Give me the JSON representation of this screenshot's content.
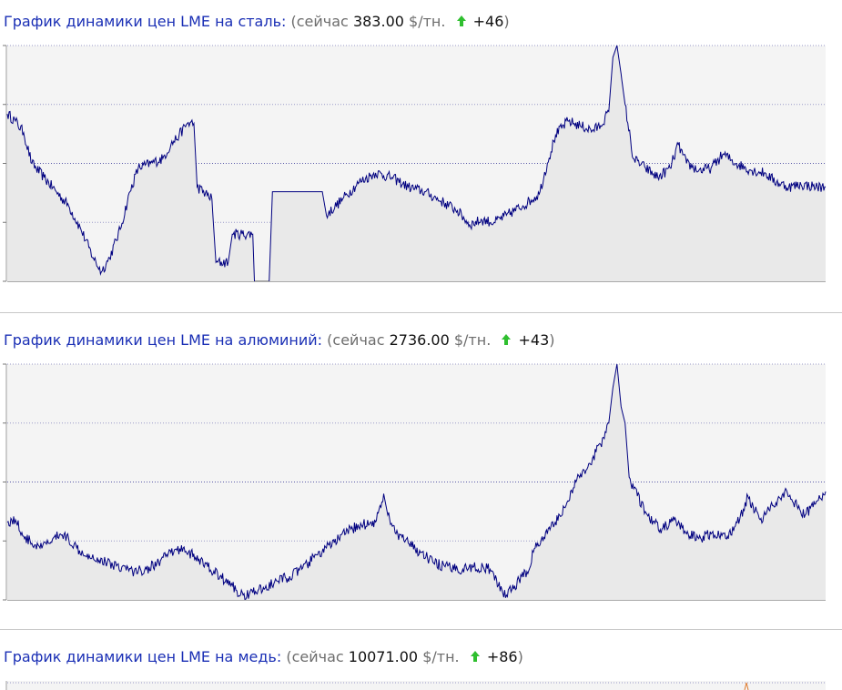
{
  "sections": [
    {
      "id": "steel",
      "title": "График динамики цен LME на сталь:",
      "now_label": "(сейчас",
      "price": "383.00",
      "unit": "$/тн.",
      "delta": "+46",
      "close_paren": ")",
      "arrow_icon": "arrow-up-icon"
    },
    {
      "id": "aluminum",
      "title": "График динамики цен LME на алюминий:",
      "now_label": "(сейчас",
      "price": "2736.00",
      "unit": "$/тн.",
      "delta": "+43",
      "close_paren": ")",
      "arrow_icon": "arrow-up-icon"
    },
    {
      "id": "copper",
      "title": "График динамики цен LME на медь:",
      "now_label": "(сейчас",
      "price": "10071.00",
      "unit": "$/тн.",
      "delta": "+86",
      "close_paren": ")",
      "arrow_icon": "arrow-up-icon"
    }
  ],
  "colors": {
    "title_link": "#1a2fb5",
    "muted": "#6d6d6d",
    "arrow": "#2fbf2f",
    "line": "#000080",
    "area": "#e9e9e9",
    "plot_bg": "#f4f4f4",
    "grid": "#9a9ac8",
    "grid_mid": "#5a5aa8"
  },
  "chart_data": [
    {
      "type": "line",
      "name": "steel",
      "title": "",
      "xlabel": "",
      "ylabel": "",
      "grid": true,
      "ylim": [
        0,
        100
      ],
      "y_note": "relative level 0-100 (axis tick labels are clipped in the image)",
      "x": [
        0,
        2,
        4,
        6,
        8,
        10,
        12,
        14,
        16,
        18,
        20,
        22,
        24,
        26,
        28,
        30,
        32,
        34,
        36,
        38,
        40,
        42,
        44,
        46,
        48,
        50,
        52,
        54,
        56,
        58,
        60,
        62,
        64,
        66,
        68,
        70,
        72,
        74,
        76,
        78,
        80,
        82,
        84,
        86,
        88,
        90,
        92,
        94,
        96,
        98,
        100
      ],
      "segments": [
        [
          [
            0.0,
            71
          ],
          [
            1.0,
            68
          ],
          [
            2.0,
            63
          ],
          [
            3.0,
            50
          ],
          [
            4.5,
            44
          ],
          [
            6.0,
            38
          ],
          [
            7.5,
            32
          ],
          [
            9.0,
            22
          ],
          [
            10.5,
            10
          ],
          [
            11.5,
            4
          ],
          [
            12.5,
            10
          ],
          [
            13.8,
            22
          ],
          [
            15.0,
            38
          ],
          [
            16.0,
            48
          ],
          [
            17.5,
            50
          ],
          [
            19.0,
            52
          ],
          [
            20.0,
            58
          ],
          [
            21.0,
            62
          ],
          [
            22.0,
            67
          ],
          [
            22.8,
            67
          ],
          [
            23.2,
            40
          ],
          [
            25.0,
            35
          ],
          [
            25.5,
            8
          ],
          [
            27.0,
            8
          ],
          [
            27.5,
            20
          ],
          [
            30.0,
            20
          ],
          [
            30.2,
            0
          ]
        ],
        [
          [
            32.0,
            0
          ],
          [
            32.4,
            38
          ],
          [
            38.5,
            38
          ],
          [
            39.0,
            28
          ],
          [
            41.0,
            35
          ],
          [
            43.0,
            42
          ],
          [
            45.0,
            46
          ],
          [
            47.0,
            44
          ],
          [
            49.0,
            40
          ],
          [
            51.0,
            38
          ],
          [
            53.0,
            34
          ],
          [
            55.0,
            30
          ],
          [
            56.5,
            24
          ],
          [
            58.0,
            26
          ],
          [
            59.5,
            25
          ],
          [
            61.0,
            28
          ],
          [
            63.0,
            32
          ],
          [
            65.0,
            37
          ],
          [
            66.0,
            50
          ],
          [
            67.0,
            62
          ],
          [
            68.5,
            68
          ],
          [
            70.0,
            66
          ],
          [
            71.5,
            64
          ],
          [
            72.5,
            66
          ],
          [
            73.5,
            72
          ],
          [
            74.0,
            95
          ],
          [
            74.5,
            100
          ],
          [
            75.0,
            88
          ],
          [
            75.5,
            75
          ],
          [
            76.5,
            52
          ],
          [
            78.0,
            48
          ],
          [
            79.5,
            44
          ],
          [
            81.0,
            48
          ],
          [
            82.0,
            58
          ],
          [
            83.0,
            50
          ],
          [
            84.5,
            47
          ],
          [
            86.0,
            48
          ],
          [
            87.5,
            54
          ],
          [
            89.0,
            50
          ],
          [
            91.0,
            47
          ],
          [
            92.5,
            46
          ],
          [
            94.0,
            42
          ],
          [
            95.5,
            40
          ],
          [
            97.0,
            41
          ],
          [
            99.0,
            40
          ],
          [
            100.0,
            40
          ]
        ]
      ]
    },
    {
      "type": "line",
      "name": "aluminum",
      "title": "",
      "xlabel": "",
      "ylabel": "",
      "grid": true,
      "ylim": [
        0,
        100
      ],
      "y_note": "relative level 0-100 (axis tick labels are clipped in the image)",
      "x": [
        0,
        2,
        4,
        6,
        8,
        10,
        12,
        14,
        16,
        18,
        20,
        22,
        24,
        26,
        28,
        30,
        32,
        34,
        36,
        38,
        40,
        42,
        44,
        46,
        48,
        50,
        52,
        54,
        56,
        58,
        60,
        62,
        64,
        66,
        68,
        70,
        72,
        74,
        76,
        78,
        80,
        82,
        84,
        86,
        88,
        90,
        92,
        94,
        96,
        98,
        100
      ],
      "segments": [
        [
          [
            0.0,
            33
          ],
          [
            1.0,
            34
          ],
          [
            2.0,
            27
          ],
          [
            3.0,
            24
          ],
          [
            4.0,
            22
          ],
          [
            5.0,
            24
          ],
          [
            6.5,
            28
          ],
          [
            7.5,
            26
          ],
          [
            8.5,
            22
          ],
          [
            10.0,
            19
          ],
          [
            12.0,
            16
          ],
          [
            14.0,
            14
          ],
          [
            15.5,
            12
          ],
          [
            17.0,
            13
          ],
          [
            18.5,
            16
          ],
          [
            20.0,
            20
          ],
          [
            21.5,
            22
          ],
          [
            23.0,
            18
          ],
          [
            24.5,
            14
          ],
          [
            26.0,
            10
          ],
          [
            27.5,
            6
          ],
          [
            28.5,
            2
          ],
          [
            30.0,
            3
          ],
          [
            31.5,
            5
          ],
          [
            33.0,
            8
          ],
          [
            34.5,
            10
          ],
          [
            36.0,
            13
          ],
          [
            37.5,
            18
          ],
          [
            39.0,
            22
          ],
          [
            40.5,
            26
          ],
          [
            42.0,
            30
          ],
          [
            43.5,
            32
          ],
          [
            45.0,
            33
          ],
          [
            46.0,
            45
          ],
          [
            46.5,
            36
          ],
          [
            47.5,
            28
          ],
          [
            49.0,
            24
          ],
          [
            50.5,
            20
          ],
          [
            52.0,
            16
          ],
          [
            53.5,
            14
          ],
          [
            55.0,
            13
          ],
          [
            57.0,
            14
          ],
          [
            59.0,
            13
          ],
          [
            60.0,
            6
          ],
          [
            61.0,
            2
          ],
          [
            62.0,
            6
          ],
          [
            63.5,
            12
          ],
          [
            64.5,
            22
          ],
          [
            66.0,
            28
          ],
          [
            67.5,
            36
          ],
          [
            68.5,
            42
          ],
          [
            69.5,
            50
          ],
          [
            70.5,
            55
          ],
          [
            71.5,
            60
          ],
          [
            72.5,
            66
          ],
          [
            73.5,
            75
          ],
          [
            74.0,
            90
          ],
          [
            74.5,
            100
          ],
          [
            75.0,
            82
          ],
          [
            75.5,
            75
          ],
          [
            76.0,
            52
          ],
          [
            77.0,
            44
          ],
          [
            78.5,
            34
          ],
          [
            80.0,
            30
          ],
          [
            81.5,
            34
          ],
          [
            83.0,
            28
          ],
          [
            84.5,
            26
          ],
          [
            86.0,
            28
          ],
          [
            88.0,
            27
          ],
          [
            89.5,
            34
          ],
          [
            90.5,
            44
          ],
          [
            92.0,
            34
          ],
          [
            93.5,
            40
          ],
          [
            95.0,
            46
          ],
          [
            96.5,
            40
          ],
          [
            97.5,
            36
          ],
          [
            99.0,
            42
          ],
          [
            100.0,
            46
          ]
        ]
      ]
    },
    {
      "type": "line",
      "name": "copper",
      "title": "",
      "note": "chart mostly cut off at the bottom edge of the screenshot",
      "x": [],
      "segments": []
    }
  ]
}
